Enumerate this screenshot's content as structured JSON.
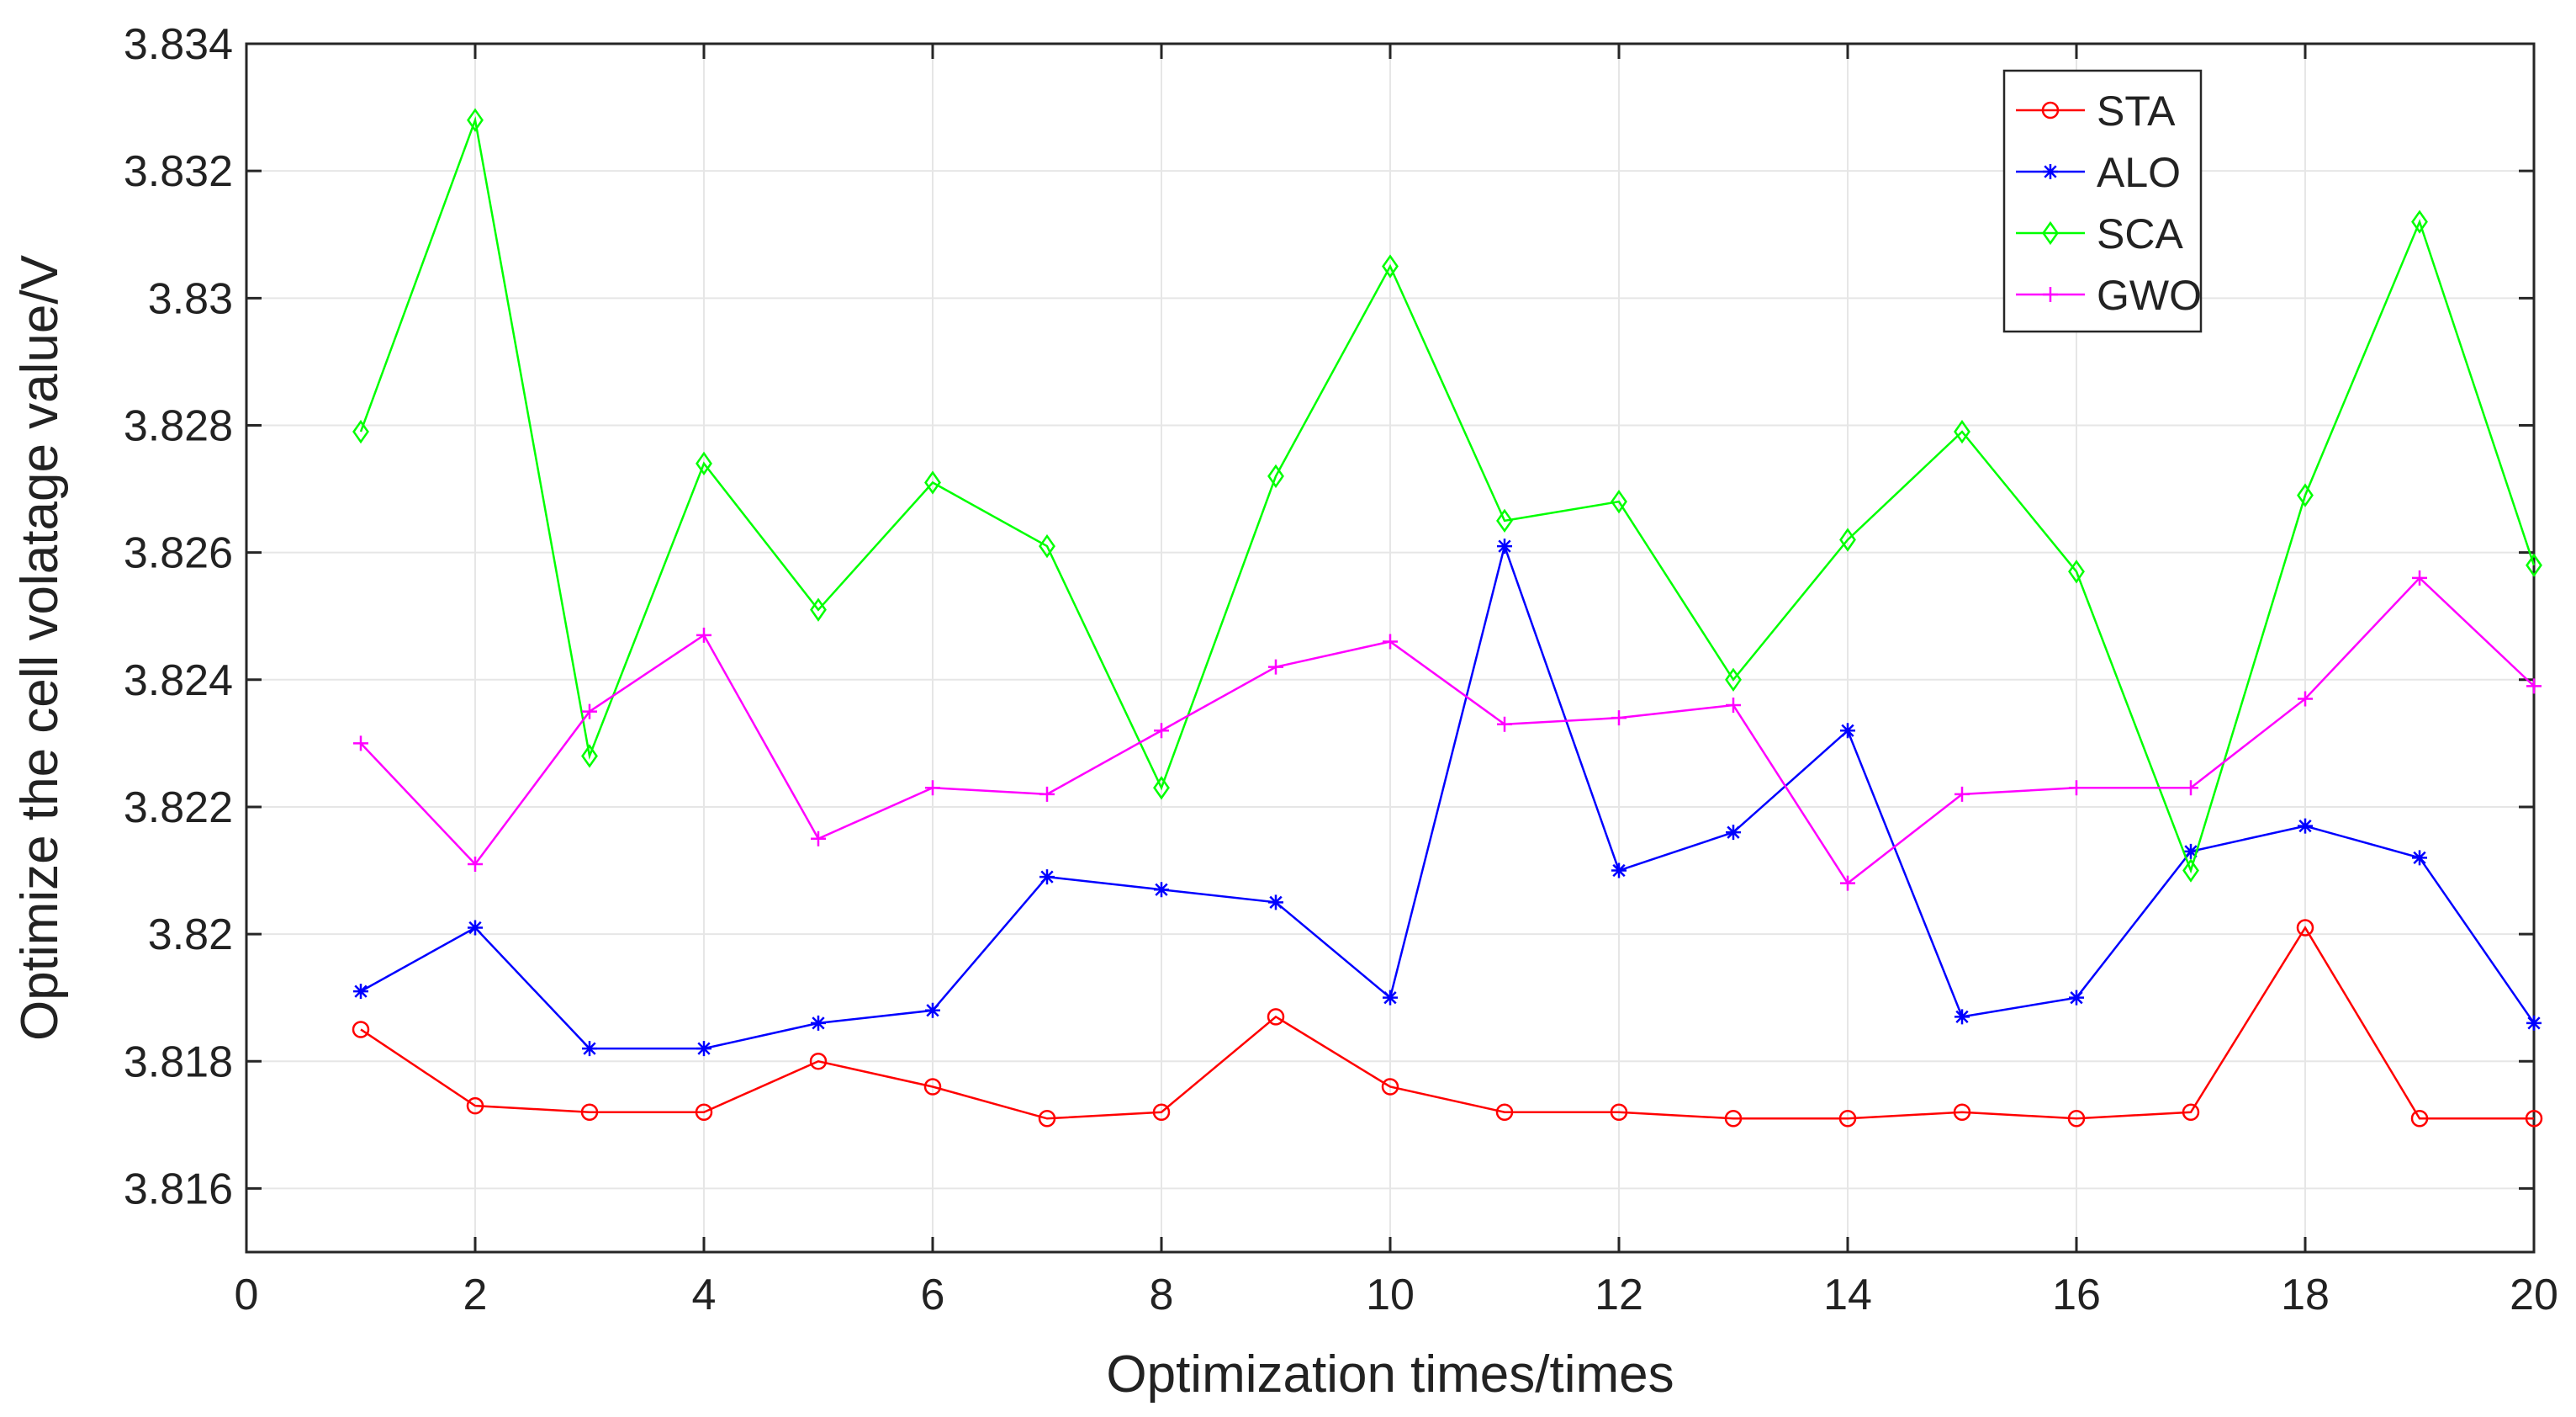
{
  "chart_data": {
    "type": "line",
    "title": "",
    "xlabel": "Optimization times/times",
    "ylabel": "Optimize the cell volatage value/V",
    "xlim": [
      0,
      20
    ],
    "ylim": [
      3.815,
      3.834
    ],
    "x_ticks": [
      0,
      2,
      4,
      6,
      8,
      10,
      12,
      14,
      16,
      18,
      20
    ],
    "x_tick_labels": [
      "0",
      "2",
      "4",
      "6",
      "8",
      "10",
      "12",
      "14",
      "16",
      "18",
      "20"
    ],
    "y_ticks": [
      3.816,
      3.818,
      3.82,
      3.822,
      3.824,
      3.826,
      3.828,
      3.83,
      3.832,
      3.834
    ],
    "y_tick_labels": [
      "3.816",
      "3.818",
      "3.82",
      "3.822",
      "3.824",
      "3.826",
      "3.828",
      "3.83",
      "3.832",
      "3.834"
    ],
    "grid": true,
    "legend_position": "top-right",
    "x": [
      1,
      2,
      3,
      4,
      5,
      6,
      7,
      8,
      9,
      10,
      11,
      12,
      13,
      14,
      15,
      16,
      17,
      18,
      19,
      20
    ],
    "series": [
      {
        "name": "STA",
        "color": "#ff0000",
        "marker": "circle",
        "values": [
          3.8185,
          3.8173,
          3.8172,
          3.8172,
          3.818,
          3.8176,
          3.8171,
          3.8172,
          3.8187,
          3.8176,
          3.8172,
          3.8172,
          3.8171,
          3.8171,
          3.8172,
          3.8171,
          3.8172,
          3.8201,
          3.8171,
          3.8171
        ]
      },
      {
        "name": "ALO",
        "color": "#0000ff",
        "marker": "asterisk",
        "values": [
          3.8191,
          3.8201,
          3.8182,
          3.8182,
          3.8186,
          3.8188,
          3.8209,
          3.8207,
          3.8205,
          3.819,
          3.8261,
          3.821,
          3.8216,
          3.8232,
          3.8187,
          3.819,
          3.8213,
          3.8217,
          3.8212,
          3.8186
        ]
      },
      {
        "name": "SCA",
        "color": "#00ff00",
        "marker": "diamond",
        "values": [
          3.8279,
          3.8328,
          3.8228,
          3.8274,
          3.8251,
          3.8271,
          3.8261,
          3.8223,
          3.8272,
          3.8305,
          3.8265,
          3.8268,
          3.824,
          3.8262,
          3.8279,
          3.8257,
          3.821,
          3.8269,
          3.8312,
          3.8258
        ]
      },
      {
        "name": "GWO",
        "color": "#ff00ff",
        "marker": "plus",
        "values": [
          3.823,
          3.8211,
          3.8235,
          3.8247,
          3.8215,
          3.8223,
          3.8222,
          3.8232,
          3.8242,
          3.8246,
          3.8233,
          3.8234,
          3.8236,
          3.8208,
          3.8222,
          3.8223,
          3.8223,
          3.8237,
          3.8256,
          3.8239
        ]
      }
    ]
  }
}
